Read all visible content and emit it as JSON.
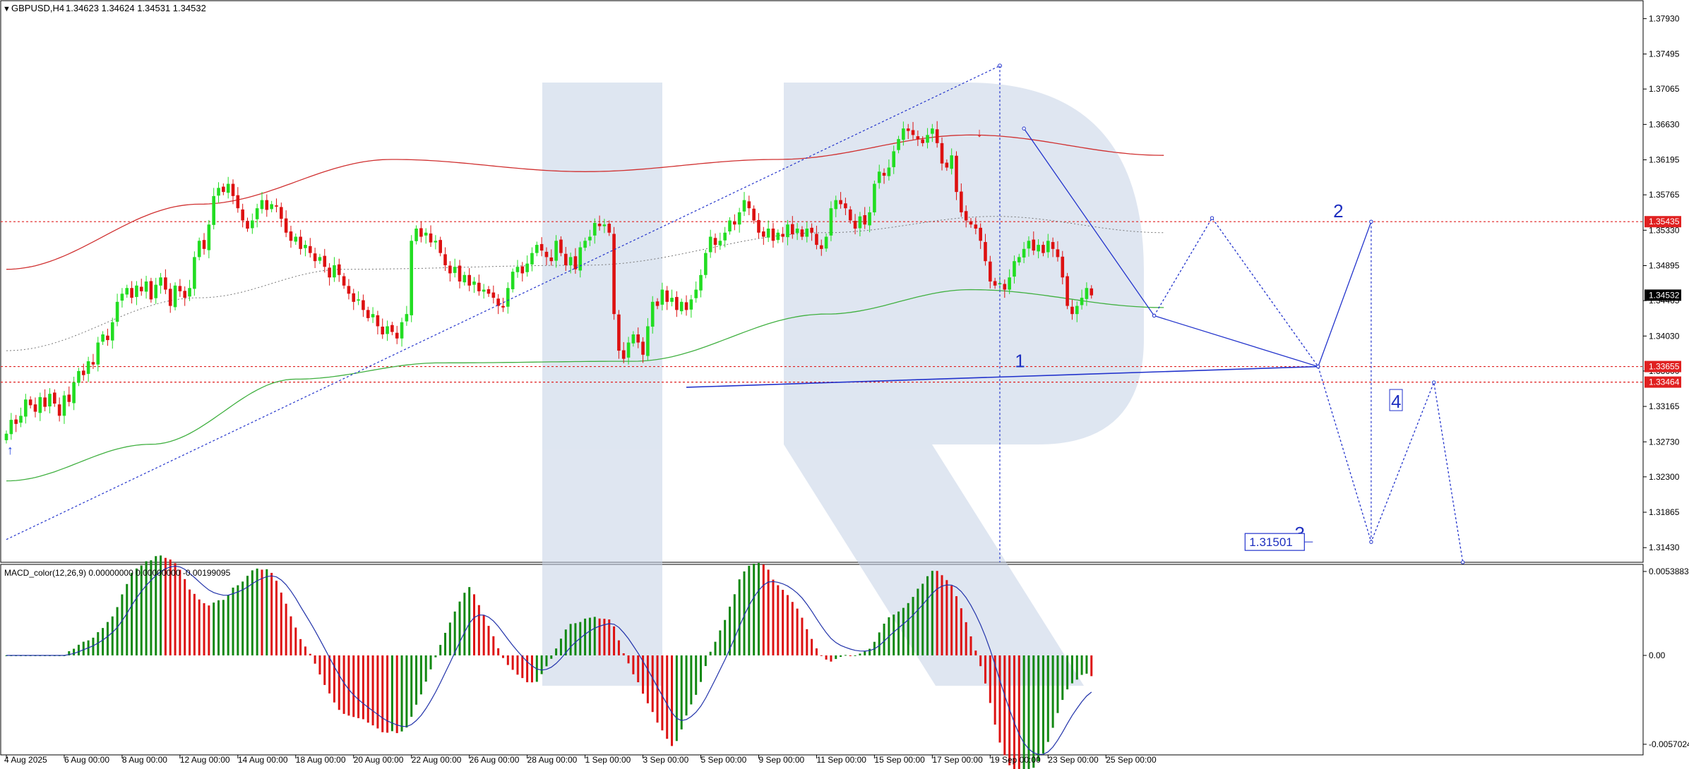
{
  "header": {
    "symbol": "GBPUSD,H4",
    "ohlc": "1.34623 1.34624 1.34531 1.34532"
  },
  "macd": {
    "label": "MACD_color(12,26,9) 0.00000000 0.00000000 -0.00199095",
    "ticks": [
      {
        "label": "0.0053883",
        "value": 0.0053883
      },
      {
        "label": "0.00",
        "value": 0.0
      },
      {
        "label": "-0.0057024",
        "value": -0.0057024
      }
    ]
  },
  "price_ticks": [
    {
      "label": "1.37930",
      "value": 1.3793
    },
    {
      "label": "1.37495",
      "value": 1.37495
    },
    {
      "label": "1.37065",
      "value": 1.37065
    },
    {
      "label": "1.36630",
      "value": 1.3663
    },
    {
      "label": "1.36195",
      "value": 1.36195
    },
    {
      "label": "1.35765",
      "value": 1.35765
    },
    {
      "label": "1.35330",
      "value": 1.3533
    },
    {
      "label": "1.34895",
      "value": 1.34895
    },
    {
      "label": "1.34465",
      "value": 1.34465
    },
    {
      "label": "1.34030",
      "value": 1.3403
    },
    {
      "label": "1.33600",
      "value": 1.336
    },
    {
      "label": "1.33165",
      "value": 1.33165
    },
    {
      "label": "1.32730",
      "value": 1.3273
    },
    {
      "label": "1.32300",
      "value": 1.323
    },
    {
      "label": "1.31865",
      "value": 1.31865
    },
    {
      "label": "1.31430",
      "value": 1.3143
    }
  ],
  "level_tags": [
    {
      "label": "1.35435",
      "value": 1.35435,
      "color": "#e02020"
    },
    {
      "label": "1.34532",
      "value": 1.34532,
      "color": "#000000"
    },
    {
      "label": "1.33655",
      "value": 1.33655,
      "color": "#e02020"
    },
    {
      "label": "1.33464",
      "value": 1.33464,
      "color": "#e02020"
    }
  ],
  "wave_labels": [
    {
      "text": "1",
      "x": 210,
      "y": 1.337
    },
    {
      "text": "2",
      "x": 276,
      "y": 1.3554
    },
    {
      "text": "3",
      "x": 268,
      "y": 1.3158
    },
    {
      "text": "4",
      "x": 288,
      "y": 1.332
    }
  ],
  "target_box": {
    "text": "1.31501",
    "x": 263,
    "y": 1.315
  },
  "time_labels": [
    {
      "label": "4 Aug 2025",
      "x": 0
    },
    {
      "label": "6 Aug 00:00",
      "x": 12
    },
    {
      "label": "8 Aug 00:00",
      "x": 24
    },
    {
      "label": "12 Aug 00:00",
      "x": 36
    },
    {
      "label": "14 Aug 00:00",
      "x": 48
    },
    {
      "label": "18 Aug 00:00",
      "x": 60
    },
    {
      "label": "20 Aug 00:00",
      "x": 72
    },
    {
      "label": "22 Aug 00:00",
      "x": 84
    },
    {
      "label": "26 Aug 00:00",
      "x": 96
    },
    {
      "label": "28 Aug 00:00",
      "x": 108
    },
    {
      "label": "1 Sep 00:00",
      "x": 120
    },
    {
      "label": "3 Sep 00:00",
      "x": 132
    },
    {
      "label": "5 Sep 00:00",
      "x": 144
    },
    {
      "label": "9 Sep 00:00",
      "x": 156
    },
    {
      "label": "11 Sep 00:00",
      "x": 168
    },
    {
      "label": "15 Sep 00:00",
      "x": 180
    },
    {
      "label": "17 Sep 00:00",
      "x": 192
    },
    {
      "label": "19 Sep 00:00",
      "x": 204
    },
    {
      "label": "23 Sep 00:00",
      "x": 216
    },
    {
      "label": "25 Sep 00:00",
      "x": 228
    }
  ],
  "chart_data": {
    "type": "candlestick",
    "symbol": "GBPUSD",
    "timeframe": "H4",
    "x_unit": "H4 bar index (0 = 4 Aug 2025 00:00)",
    "ylim": [
      1.3125,
      1.3815
    ],
    "grid": false,
    "close": [
      1.3283,
      1.33,
      1.3295,
      1.3305,
      1.3325,
      1.3318,
      1.331,
      1.3328,
      1.3316,
      1.3332,
      1.332,
      1.3305,
      1.333,
      1.3322,
      1.3346,
      1.336,
      1.3355,
      1.3372,
      1.3368,
      1.3395,
      1.3405,
      1.3398,
      1.342,
      1.3445,
      1.3455,
      1.3462,
      1.345,
      1.3465,
      1.3458,
      1.347,
      1.3448,
      1.3466,
      1.3475,
      1.346,
      1.344,
      1.3465,
      1.3458,
      1.345,
      1.3462,
      1.35,
      1.352,
      1.351,
      1.354,
      1.3575,
      1.3585,
      1.358,
      1.359,
      1.3575,
      1.356,
      1.3545,
      1.3535,
      1.3545,
      1.356,
      1.357,
      1.3558,
      1.3565,
      1.3562,
      1.3547,
      1.353,
      1.352,
      1.3525,
      1.351,
      1.3515,
      1.3505,
      1.3495,
      1.35,
      1.3488,
      1.3475,
      1.349,
      1.3478,
      1.3465,
      1.3455,
      1.3445,
      1.3448,
      1.3435,
      1.3425,
      1.343,
      1.3415,
      1.3405,
      1.3415,
      1.3408,
      1.34,
      1.342,
      1.343,
      1.352,
      1.3535,
      1.3525,
      1.353,
      1.3518,
      1.352,
      1.3505,
      1.349,
      1.348,
      1.3488,
      1.347,
      1.3478,
      1.3465,
      1.347,
      1.3458,
      1.346,
      1.3455,
      1.345,
      1.344,
      1.3438,
      1.3462,
      1.3482,
      1.3488,
      1.348,
      1.3492,
      1.3505,
      1.3515,
      1.3508,
      1.35,
      1.3495,
      1.352,
      1.3505,
      1.349,
      1.35,
      1.3485,
      1.3512,
      1.352,
      1.3525,
      1.3542,
      1.3538,
      1.354,
      1.353,
      1.343,
      1.3385,
      1.3375,
      1.3395,
      1.3405,
      1.3395,
      1.338,
      1.3415,
      1.3445,
      1.344,
      1.346,
      1.3445,
      1.345,
      1.3435,
      1.3445,
      1.3435,
      1.3448,
      1.346,
      1.3478,
      1.3505,
      1.3525,
      1.3515,
      1.352,
      1.353,
      1.3545,
      1.354,
      1.3555,
      1.357,
      1.356,
      1.3545,
      1.353,
      1.3525,
      1.3535,
      1.352,
      1.353,
      1.3525,
      1.354,
      1.3528,
      1.3535,
      1.3525,
      1.3535,
      1.353,
      1.3515,
      1.351,
      1.3525,
      1.356,
      1.357,
      1.3565,
      1.356,
      1.3545,
      1.3535,
      1.355,
      1.354,
      1.3555,
      1.359,
      1.3605,
      1.36,
      1.361,
      1.363,
      1.3645,
      1.3658,
      1.3655,
      1.365,
      1.3645,
      1.364,
      1.365,
      1.3658,
      1.364,
      1.3615,
      1.361,
      1.3625,
      1.358,
      1.3555,
      1.3545,
      1.354,
      1.3535,
      1.352,
      1.3495,
      1.347,
      1.3465,
      1.3468,
      1.346,
      1.3475,
      1.3495,
      1.35,
      1.351,
      1.352,
      1.3508,
      1.3515,
      1.3505,
      1.352,
      1.351,
      1.35,
      1.3475,
      1.344,
      1.343,
      1.344,
      1.345,
      1.3462,
      1.3453
    ],
    "sma_red": [
      [
        0,
        1.3485
      ],
      [
        40,
        1.3565
      ],
      [
        80,
        1.362
      ],
      [
        120,
        1.3605
      ],
      [
        160,
        1.362
      ],
      [
        200,
        1.365
      ],
      [
        240,
        1.3625
      ]
    ],
    "sma_green": [
      [
        0,
        1.3225
      ],
      [
        30,
        1.327
      ],
      [
        60,
        1.335
      ],
      [
        90,
        1.337
      ],
      [
        130,
        1.3372
      ],
      [
        170,
        1.343
      ],
      [
        200,
        1.346
      ],
      [
        240,
        1.3438
      ]
    ],
    "sma_dotted": [
      [
        0,
        1.3385
      ],
      [
        40,
        1.345
      ],
      [
        70,
        1.3485
      ],
      [
        120,
        1.349
      ],
      [
        170,
        1.353
      ],
      [
        205,
        1.355
      ],
      [
        240,
        1.353
      ]
    ],
    "red_hlines": [
      1.35435,
      1.33655,
      1.33464
    ],
    "trendline_1": [
      [
        141,
        1.334
      ],
      [
        272,
        1.33655
      ]
    ],
    "dotted_trend": [
      [
        0,
        1.3153
      ],
      [
        206,
        1.3735
      ]
    ],
    "vertical_dotted": [
      {
        "x": 206,
        "from": 1.3735,
        "to": 1.3125
      }
    ],
    "vertical_dotted_2": [
      {
        "x": 283,
        "from": 1.3543,
        "to": 1.315
      }
    ],
    "projection_solid": [
      [
        211,
        1.3658
      ],
      [
        238,
        1.3428
      ],
      [
        272,
        1.33655
      ],
      [
        283,
        1.35435
      ]
    ],
    "projection_dotted": [
      [
        238,
        1.3428
      ],
      [
        250,
        1.3548
      ],
      [
        272,
        1.33655
      ],
      [
        283,
        1.315
      ],
      [
        296,
        1.3346
      ],
      [
        302,
        1.3125
      ]
    ],
    "arrows": [
      {
        "x": 1,
        "y": 1.3263,
        "dir": "up",
        "color": "#1e3fe0"
      },
      {
        "x": 202,
        "y": 1.3653,
        "dir": "down",
        "color": "#e02020"
      }
    ],
    "macd_hist_note": "MACD histogram values per bar, green = rising, red = falling",
    "macd_signal_note": "signal line (blue)"
  }
}
